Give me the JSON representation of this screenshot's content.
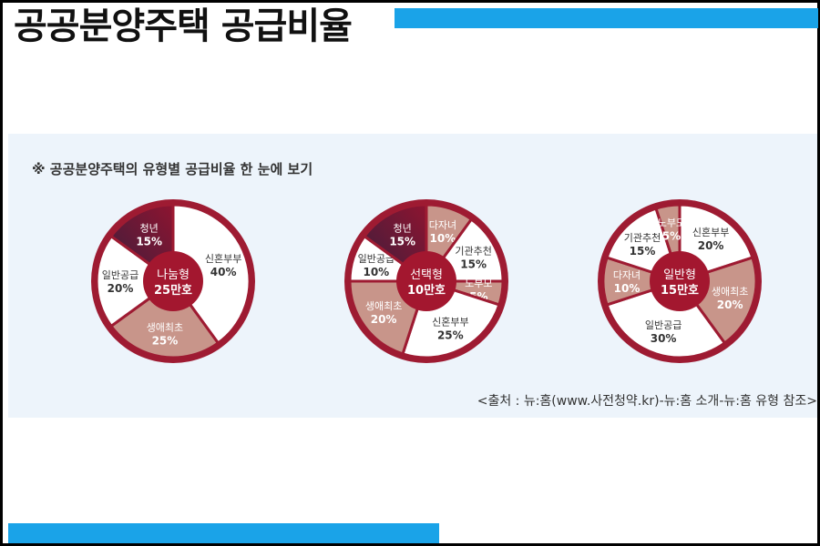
{
  "title": "공공분양주택 공급비율",
  "subtitle": "※ 공공분양주택의 유형별 공급비율 한 눈에 보기",
  "source": "<출처 : 뉴:홈(www.사전청약.kr)-뉴:홈 소개-뉴:홈 유형 참조>",
  "colors": {
    "accent_bar": "#1aa3e8",
    "panel_bg": "#edf4fb",
    "ring": "#9e1b32",
    "center": "#a3172f",
    "slice_light": "#ffffff",
    "slice_tan": "#c8958a",
    "slice_dark_start": "#8e1430",
    "slice_dark_end": "#3c1f3d"
  },
  "chart_data": [
    {
      "type": "pie",
      "center_label": [
        "나눔형",
        "25만호"
      ],
      "slices": [
        {
          "label": "신혼부부",
          "value": 40,
          "value_label": "40%",
          "style": "light"
        },
        {
          "label": "생애최초",
          "value": 25,
          "value_label": "25%",
          "style": "tan"
        },
        {
          "label": "일반공급",
          "value": 20,
          "value_label": "20%",
          "style": "light"
        },
        {
          "label": "청년",
          "value": 15,
          "value_label": "15%",
          "style": "dark"
        }
      ]
    },
    {
      "type": "pie",
      "center_label": [
        "선택형",
        "10만호"
      ],
      "slices": [
        {
          "label": "다자녀",
          "value": 10,
          "value_label": "10%",
          "style": "tan"
        },
        {
          "label": "기관추천",
          "value": 15,
          "value_label": "15%",
          "style": "light"
        },
        {
          "label": "노부모",
          "value": 5,
          "value_label": "5%",
          "style": "tan"
        },
        {
          "label": "신혼부부",
          "value": 25,
          "value_label": "25%",
          "style": "light"
        },
        {
          "label": "생애최초",
          "value": 20,
          "value_label": "20%",
          "style": "tan"
        },
        {
          "label": "일반공급",
          "value": 10,
          "value_label": "10%",
          "style": "light"
        },
        {
          "label": "청년",
          "value": 15,
          "value_label": "15%",
          "style": "dark"
        }
      ]
    },
    {
      "type": "pie",
      "center_label": [
        "일반형",
        "15만호"
      ],
      "slices": [
        {
          "label": "신혼부부",
          "value": 20,
          "value_label": "20%",
          "style": "light"
        },
        {
          "label": "생애최초",
          "value": 20,
          "value_label": "20%",
          "style": "tan"
        },
        {
          "label": "일반공급",
          "value": 30,
          "value_label": "30%",
          "style": "light"
        },
        {
          "label": "다자녀",
          "value": 10,
          "value_label": "10%",
          "style": "tan"
        },
        {
          "label": "기관추천",
          "value": 15,
          "value_label": "15%",
          "style": "light"
        },
        {
          "label": "노부모",
          "value": 5,
          "value_label": "5%",
          "style": "tan"
        }
      ]
    }
  ]
}
